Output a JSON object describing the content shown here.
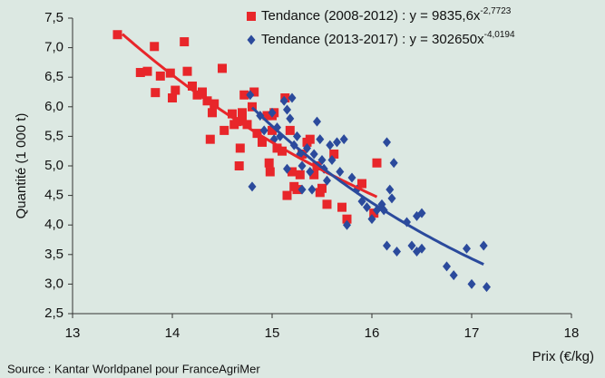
{
  "chart_data": {
    "type": "scatter",
    "xlabel": "Prix (€/kg)",
    "ylabel": "Quantité (1 000 t)",
    "source": "Source : Kantar Worldpanel pour FranceAgriMer",
    "xlim": [
      13,
      18
    ],
    "ylim": [
      2.5,
      7.5
    ],
    "xticks": [
      13,
      14,
      15,
      16,
      17,
      18
    ],
    "yticks": [
      {
        "value": 2.5,
        "label": "2,5"
      },
      {
        "value": 3,
        "label": "3,0"
      },
      {
        "value": 3.5,
        "label": "3,5"
      },
      {
        "value": 4,
        "label": "4,0"
      },
      {
        "value": 4.5,
        "label": "4,5"
      },
      {
        "value": 5,
        "label": "5,0"
      },
      {
        "value": 5.5,
        "label": "5,5"
      },
      {
        "value": 6,
        "label": "6,0"
      },
      {
        "value": 6.5,
        "label": "6,5"
      },
      {
        "value": 7,
        "label": "7,0"
      },
      {
        "value": 7.5,
        "label": "7,5"
      }
    ],
    "series": [
      {
        "name": "Tendance (2008-2012) : y = 9835,6x",
        "exponent_label": "-2,7723",
        "color": "#e8262a",
        "marker": "square",
        "trend": {
          "coefficient": 9835.6,
          "exponent": -2.7723,
          "x_range": [
            13.5,
            16.05
          ]
        },
        "x": [
          13.45,
          13.68,
          13.75,
          13.82,
          13.83,
          13.88,
          13.98,
          14.0,
          14.03,
          14.12,
          14.15,
          14.2,
          14.25,
          14.3,
          14.35,
          14.38,
          14.4,
          14.42,
          14.5,
          14.52,
          14.6,
          14.62,
          14.65,
          14.67,
          14.68,
          14.7,
          14.7,
          14.72,
          14.75,
          14.8,
          14.82,
          14.85,
          14.9,
          14.95,
          15.0,
          15.0,
          15.02,
          15.05,
          15.1,
          15.13,
          15.15,
          15.18,
          15.2,
          15.22,
          15.25,
          15.28,
          15.3,
          15.35,
          15.38,
          15.42,
          15.45,
          15.48,
          15.5,
          15.55,
          15.7,
          15.75,
          15.9,
          16.02,
          16.05,
          15.62,
          14.97,
          14.98
        ],
        "values": [
          7.22,
          6.58,
          6.6,
          7.02,
          6.24,
          6.52,
          6.57,
          6.15,
          6.28,
          7.1,
          6.6,
          6.35,
          6.2,
          6.25,
          6.1,
          5.45,
          5.9,
          6.05,
          6.65,
          5.6,
          5.88,
          5.7,
          5.75,
          5.0,
          5.3,
          5.9,
          5.8,
          6.2,
          5.7,
          6.0,
          6.25,
          5.55,
          5.4,
          5.85,
          5.85,
          5.6,
          5.9,
          5.3,
          5.25,
          6.15,
          4.5,
          5.6,
          4.9,
          4.65,
          4.6,
          4.85,
          5.2,
          5.4,
          5.45,
          4.85,
          5.0,
          4.55,
          4.62,
          4.35,
          4.3,
          4.1,
          4.7,
          4.2,
          5.05,
          5.2,
          5.05,
          4.9
        ]
      },
      {
        "name": "Tendance (2013-2017) : y = 302650x",
        "exponent_label": "-4,0194",
        "color": "#2b4a9c",
        "marker": "diamond",
        "trend": {
          "coefficient": 302650,
          "exponent": -4.0194,
          "x_range": [
            14.8,
            17.12
          ]
        },
        "x": [
          14.8,
          14.78,
          14.88,
          14.92,
          15.0,
          15.05,
          15.08,
          15.12,
          15.15,
          15.18,
          15.2,
          15.22,
          15.25,
          15.28,
          15.3,
          15.35,
          15.38,
          15.42,
          15.45,
          15.48,
          15.5,
          15.52,
          15.55,
          15.58,
          15.6,
          15.65,
          15.68,
          15.72,
          15.75,
          15.8,
          15.85,
          15.9,
          15.95,
          16.0,
          16.1,
          16.12,
          16.15,
          16.18,
          16.2,
          16.22,
          16.15,
          16.25,
          16.35,
          16.4,
          16.45,
          16.45,
          16.5,
          16.5,
          16.75,
          16.82,
          16.95,
          17.0,
          17.12,
          17.15,
          15.4,
          15.3,
          16.05,
          15.15,
          15.02
        ],
        "values": [
          4.65,
          6.2,
          5.85,
          5.6,
          5.9,
          5.65,
          5.5,
          6.1,
          5.95,
          5.8,
          6.15,
          5.35,
          5.5,
          5.2,
          5.0,
          5.3,
          4.9,
          5.2,
          5.75,
          5.45,
          5.1,
          4.95,
          4.75,
          5.35,
          5.1,
          5.4,
          4.9,
          5.45,
          4.0,
          4.8,
          4.6,
          4.4,
          4.3,
          4.1,
          4.35,
          4.25,
          5.4,
          4.6,
          4.45,
          5.05,
          3.65,
          3.55,
          4.05,
          3.65,
          3.55,
          4.15,
          3.6,
          4.2,
          3.3,
          3.15,
          3.6,
          3.0,
          3.65,
          2.95,
          4.6,
          4.6,
          4.25,
          4.95,
          5.45
        ]
      }
    ]
  }
}
